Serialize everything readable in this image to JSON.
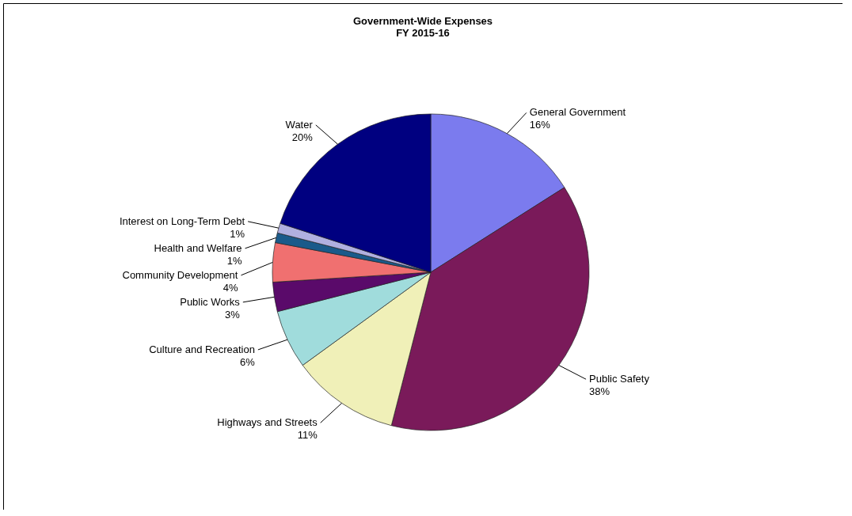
{
  "chart_data": {
    "type": "pie",
    "title": [
      "Government-Wide Expenses",
      "FY 2015-16"
    ],
    "categories": [
      "General Government",
      "Public Safety",
      "Highways and Streets",
      "Culture and Recreation",
      "Public Works",
      "Community Development",
      "Health and Welfare",
      "Interest on Long-Term Debt",
      "Water"
    ],
    "values": [
      16,
      38,
      11,
      6,
      3,
      4,
      1,
      1,
      20
    ],
    "value_labels": [
      "16%",
      "38%",
      "11%",
      "6%",
      "3%",
      "4%",
      "1%",
      "1%",
      "20%"
    ],
    "colors": [
      "#7b7bee",
      "#7a1a5a",
      "#f0f0b8",
      "#a0dcdc",
      "#5a0a6a",
      "#f07070",
      "#1a5a8a",
      "#b0b0e0",
      "#000080"
    ],
    "legend": false
  }
}
